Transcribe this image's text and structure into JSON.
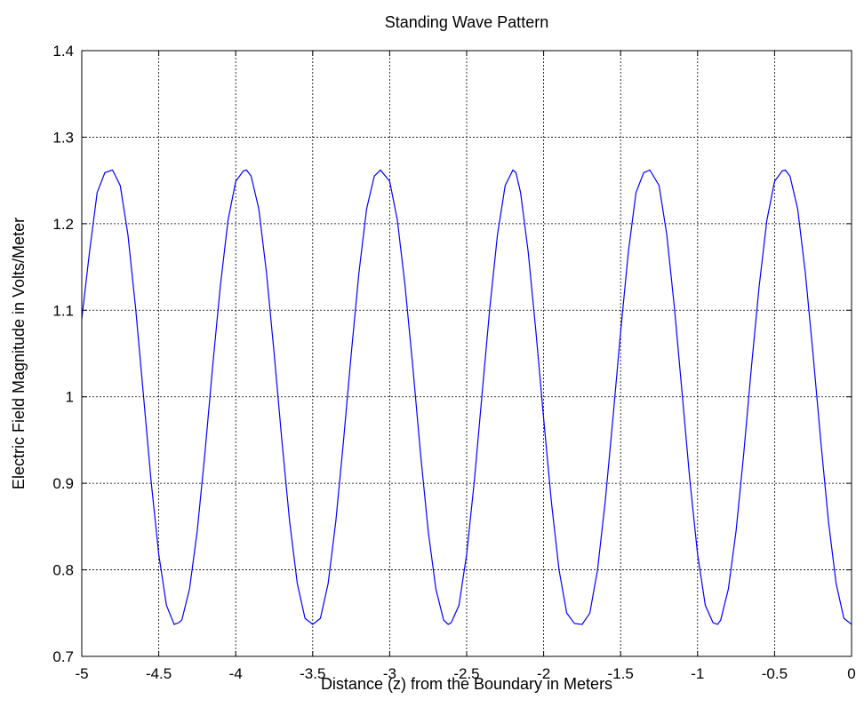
{
  "chart_data": {
    "type": "line",
    "title": "Standing Wave Pattern",
    "xlabel": "Distance (z) from the Boundary in Meters",
    "ylabel": "Electric Field Magnitude in Volts/Meter",
    "xlim": [
      -5,
      0
    ],
    "ylim": [
      0.7,
      1.4
    ],
    "xticks": [
      -5,
      -4.5,
      -4,
      -3.5,
      -3,
      -2.5,
      -2,
      -1.5,
      -1,
      -0.5,
      0
    ],
    "xtick_labels": [
      "-5",
      "-4.5",
      "-4",
      "-3.5",
      "-3",
      "-2.5",
      "-2",
      "-1.5",
      "-1",
      "-0.5",
      "0"
    ],
    "yticks": [
      0.7,
      0.8,
      0.9,
      1.0,
      1.1,
      1.2,
      1.3,
      1.4
    ],
    "ytick_labels": [
      "0.7",
      "0.8",
      "0.9",
      "1",
      "1.1",
      "1.2",
      "1.3",
      "1.4"
    ],
    "grid": true,
    "line_color": "#0000ff",
    "series": [
      {
        "x": [
          -5.0,
          -4.95,
          -4.9,
          -4.85,
          -4.8,
          -4.75,
          -4.7,
          -4.65,
          -4.6,
          -4.55,
          -4.5,
          -4.45,
          -4.4,
          -4.37,
          -4.35,
          -4.3,
          -4.25,
          -4.2,
          -4.15,
          -4.1,
          -4.05,
          -4.0,
          -3.95,
          -3.93,
          -3.9,
          -3.85,
          -3.8,
          -3.75,
          -3.7,
          -3.65,
          -3.6,
          -3.55,
          -3.5,
          -3.45,
          -3.4,
          -3.35,
          -3.3,
          -3.25,
          -3.2,
          -3.15,
          -3.1,
          -3.06,
          -3.0,
          -2.95,
          -2.9,
          -2.85,
          -2.8,
          -2.75,
          -2.7,
          -2.65,
          -2.62,
          -2.6,
          -2.55,
          -2.5,
          -2.45,
          -2.4,
          -2.35,
          -2.3,
          -2.25,
          -2.2,
          -2.18,
          -2.15,
          -2.1,
          -2.05,
          -2.0,
          -1.95,
          -1.9,
          -1.85,
          -1.8,
          -1.75,
          -1.7,
          -1.65,
          -1.6,
          -1.55,
          -1.5,
          -1.45,
          -1.4,
          -1.35,
          -1.31,
          -1.25,
          -1.2,
          -1.15,
          -1.1,
          -1.05,
          -1.0,
          -0.95,
          -0.9,
          -0.87,
          -0.85,
          -0.8,
          -0.75,
          -0.7,
          -0.65,
          -0.6,
          -0.55,
          -0.5,
          -0.45,
          -0.43,
          -0.4,
          -0.35,
          -0.3,
          -0.25,
          -0.2,
          -0.15,
          -0.1,
          -0.05,
          0.0
        ],
        "y": [
          1.09,
          1.167,
          1.236,
          1.259,
          1.262,
          1.244,
          1.187,
          1.102,
          1.003,
          0.903,
          0.818,
          0.759,
          0.737,
          0.739,
          0.742,
          0.778,
          0.845,
          0.935,
          1.035,
          1.128,
          1.204,
          1.249,
          1.261,
          1.262,
          1.255,
          1.217,
          1.143,
          1.049,
          0.949,
          0.856,
          0.784,
          0.744,
          0.737,
          0.744,
          0.784,
          0.856,
          0.949,
          1.049,
          1.143,
          1.217,
          1.255,
          1.262,
          1.249,
          1.204,
          1.128,
          1.035,
          0.935,
          0.845,
          0.778,
          0.742,
          0.737,
          0.739,
          0.759,
          0.818,
          0.903,
          1.003,
          1.102,
          1.187,
          1.244,
          1.262,
          1.259,
          1.236,
          1.167,
          1.075,
          0.975,
          0.879,
          0.8,
          0.75,
          0.738,
          0.737,
          0.75,
          0.8,
          0.879,
          0.975,
          1.075,
          1.167,
          1.236,
          1.259,
          1.262,
          1.244,
          1.187,
          1.102,
          1.003,
          0.903,
          0.818,
          0.759,
          0.739,
          0.737,
          0.742,
          0.778,
          0.845,
          0.935,
          1.035,
          1.128,
          1.204,
          1.249,
          1.261,
          1.262,
          1.255,
          1.217,
          1.143,
          1.049,
          0.949,
          0.856,
          0.784,
          0.744,
          0.737
        ]
      }
    ]
  }
}
